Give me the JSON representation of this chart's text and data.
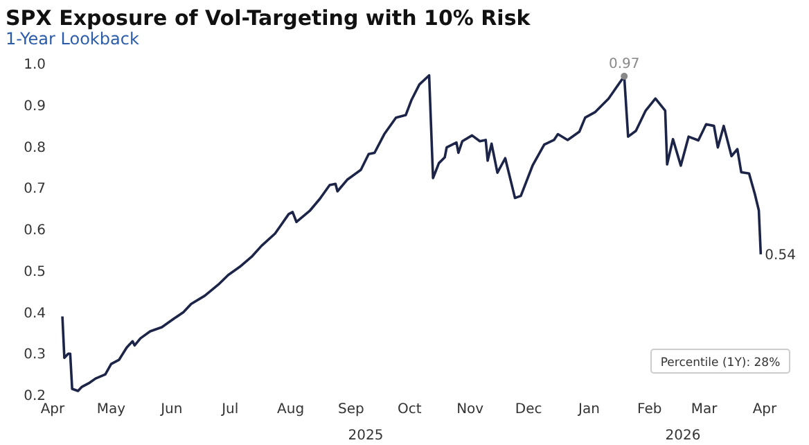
{
  "chart_data": {
    "type": "line",
    "title": "SPX Exposure of Vol-Targeting with 10% Risk",
    "subtitle": "1-Year Lookback",
    "x": [
      "2025-04-06",
      "2025-04-07",
      "2025-04-09",
      "2025-04-10",
      "2025-04-11",
      "2025-04-14",
      "2025-04-16",
      "2025-04-20",
      "2025-04-23",
      "2025-04-28",
      "2025-05-01",
      "2025-05-05",
      "2025-05-09",
      "2025-05-12",
      "2025-05-13",
      "2025-05-16",
      "2025-05-21",
      "2025-05-27",
      "2025-06-02",
      "2025-06-07",
      "2025-06-11",
      "2025-06-18",
      "2025-06-25",
      "2025-06-30",
      "2025-07-06",
      "2025-07-12",
      "2025-07-17",
      "2025-07-24",
      "2025-07-27",
      "2025-07-31",
      "2025-08-02",
      "2025-08-04",
      "2025-08-11",
      "2025-08-16",
      "2025-08-21",
      "2025-08-24",
      "2025-08-25",
      "2025-08-30",
      "2025-09-06",
      "2025-09-10",
      "2025-09-13",
      "2025-09-18",
      "2025-09-24",
      "2025-09-29",
      "2025-10-02",
      "2025-10-06",
      "2025-10-11",
      "2025-10-13",
      "2025-10-16",
      "2025-10-19",
      "2025-10-20",
      "2025-10-25",
      "2025-10-26",
      "2025-10-28",
      "2025-11-02",
      "2025-11-06",
      "2025-11-09",
      "2025-11-10",
      "2025-11-12",
      "2025-11-15",
      "2025-11-19",
      "2025-11-24",
      "2025-11-27",
      "2025-12-03",
      "2025-12-09",
      "2025-12-14",
      "2025-12-16",
      "2025-12-21",
      "2025-12-27",
      "2025-12-30",
      "2026-01-04",
      "2026-01-11",
      "2026-01-15",
      "2026-01-19",
      "2026-01-21",
      "2026-01-25",
      "2026-01-30",
      "2026-02-04",
      "2026-02-09",
      "2026-02-10",
      "2026-02-13",
      "2026-02-17",
      "2026-02-21",
      "2026-02-26",
      "2026-03-02",
      "2026-03-06",
      "2026-03-08",
      "2026-03-11",
      "2026-03-15",
      "2026-03-18",
      "2026-03-20",
      "2026-03-24",
      "2026-03-27",
      "2026-03-29",
      "2026-03-30"
    ],
    "series": [
      {
        "color": "#1c2448",
        "values": [
          0.39,
          0.29,
          0.3,
          0.3,
          0.215,
          0.21,
          0.22,
          0.23,
          0.24,
          0.25,
          0.275,
          0.285,
          0.315,
          0.33,
          0.32,
          0.337,
          0.354,
          0.364,
          0.384,
          0.4,
          0.42,
          0.44,
          0.467,
          0.49,
          0.51,
          0.534,
          0.56,
          0.59,
          0.61,
          0.637,
          0.642,
          0.618,
          0.646,
          0.674,
          0.707,
          0.71,
          0.692,
          0.72,
          0.744,
          0.782,
          0.785,
          0.83,
          0.87,
          0.876,
          0.913,
          0.95,
          0.972,
          0.724,
          0.76,
          0.774,
          0.798,
          0.81,
          0.785,
          0.813,
          0.827,
          0.813,
          0.816,
          0.766,
          0.807,
          0.737,
          0.772,
          0.676,
          0.681,
          0.754,
          0.805,
          0.816,
          0.83,
          0.816,
          0.836,
          0.87,
          0.883,
          0.916,
          0.943,
          0.97,
          0.824,
          0.838,
          0.887,
          0.916,
          0.887,
          0.757,
          0.818,
          0.754,
          0.824,
          0.815,
          0.854,
          0.85,
          0.798,
          0.85,
          0.777,
          0.794,
          0.738,
          0.735,
          0.685,
          0.646,
          0.54
        ]
      }
    ],
    "xlim": [
      "2025-04-01",
      "2026-04-01"
    ],
    "xticks": [
      {
        "value": "2025-04-01",
        "label": "Apr"
      },
      {
        "value": "2025-05-01",
        "label": "May"
      },
      {
        "value": "2025-06-01",
        "label": "Jun"
      },
      {
        "value": "2025-07-01",
        "label": "Jul"
      },
      {
        "value": "2025-08-01",
        "label": "Aug"
      },
      {
        "value": "2025-09-01",
        "label": "Sep"
      },
      {
        "value": "2025-10-01",
        "label": "Oct"
      },
      {
        "value": "2025-11-01",
        "label": "Nov"
      },
      {
        "value": "2025-12-01",
        "label": "Dec"
      },
      {
        "value": "2026-01-01",
        "label": "Jan"
      },
      {
        "value": "2026-02-01",
        "label": "Feb"
      },
      {
        "value": "2026-03-01",
        "label": "Mar"
      },
      {
        "value": "2026-04-01",
        "label": "Apr"
      }
    ],
    "ylim": [
      0.2,
      1.0
    ],
    "yticks": [
      0.2,
      0.3,
      0.4,
      0.5,
      0.6,
      0.7,
      0.8,
      0.9,
      {
        "value": 1.0,
        "label": "1.0"
      }
    ],
    "grid": false,
    "marker": "none",
    "line_style": "solid",
    "annotations": [
      "2025",
      "2026",
      "Percentile (1Y): 28%",
      {
        "text": "0.97",
        "x": "2026-01-19",
        "y": 0.97
      },
      {
        "text": "0.54",
        "x": "2026-03-30",
        "y": 0.54
      }
    ]
  }
}
